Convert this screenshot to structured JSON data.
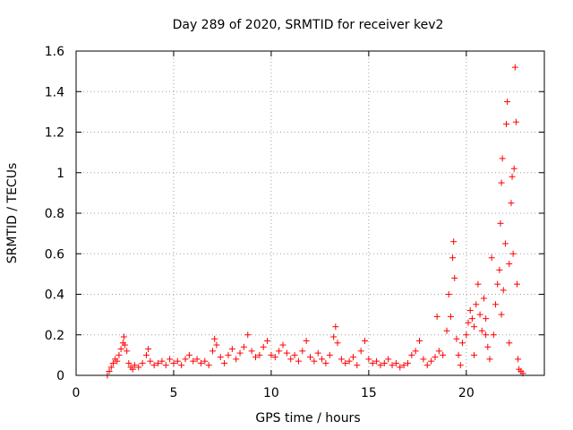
{
  "chart_data": {
    "type": "scatter",
    "title": "Day 289 of 2020, SRMTID for receiver kev2",
    "xlabel": "GPS time / hours",
    "ylabel": "SRMTID / TECUs",
    "xlim": [
      0,
      24
    ],
    "ylim": [
      0,
      1.6
    ],
    "xticks": [
      0,
      5,
      10,
      15,
      20
    ],
    "xtick_labels": [
      "0",
      "5",
      "10",
      "15",
      "20"
    ],
    "yticks": [
      0,
      0.2,
      0.4,
      0.6,
      0.8,
      1.0,
      1.2,
      1.4,
      1.6
    ],
    "ytick_labels": [
      "0",
      "0.2",
      "0.4",
      "0.6",
      "0.8",
      "1",
      "1.2",
      "1.4",
      "1.6"
    ],
    "grid": true,
    "marker": "+",
    "color": "#ff0000",
    "series": [
      {
        "name": "SRMTID",
        "points": [
          [
            1.6,
            0.0
          ],
          [
            1.7,
            0.02
          ],
          [
            1.8,
            0.04
          ],
          [
            1.9,
            0.06
          ],
          [
            2.0,
            0.08
          ],
          [
            2.1,
            0.07
          ],
          [
            2.2,
            0.1
          ],
          [
            2.3,
            0.13
          ],
          [
            2.4,
            0.16
          ],
          [
            2.45,
            0.19
          ],
          [
            2.5,
            0.15
          ],
          [
            2.6,
            0.12
          ],
          [
            2.7,
            0.06
          ],
          [
            2.8,
            0.04
          ],
          [
            2.9,
            0.03
          ],
          [
            3.0,
            0.05
          ],
          [
            3.2,
            0.04
          ],
          [
            3.4,
            0.06
          ],
          [
            3.6,
            0.1
          ],
          [
            3.7,
            0.13
          ],
          [
            3.8,
            0.07
          ],
          [
            4.0,
            0.05
          ],
          [
            4.2,
            0.06
          ],
          [
            4.4,
            0.07
          ],
          [
            4.6,
            0.05
          ],
          [
            4.8,
            0.08
          ],
          [
            5.0,
            0.06
          ],
          [
            5.2,
            0.07
          ],
          [
            5.4,
            0.05
          ],
          [
            5.6,
            0.08
          ],
          [
            5.8,
            0.1
          ],
          [
            6.0,
            0.07
          ],
          [
            6.2,
            0.08
          ],
          [
            6.4,
            0.06
          ],
          [
            6.6,
            0.07
          ],
          [
            6.8,
            0.05
          ],
          [
            7.0,
            0.12
          ],
          [
            7.1,
            0.18
          ],
          [
            7.2,
            0.15
          ],
          [
            7.4,
            0.09
          ],
          [
            7.6,
            0.06
          ],
          [
            7.8,
            0.1
          ],
          [
            8.0,
            0.13
          ],
          [
            8.2,
            0.08
          ],
          [
            8.4,
            0.11
          ],
          [
            8.6,
            0.14
          ],
          [
            8.8,
            0.2
          ],
          [
            9.0,
            0.12
          ],
          [
            9.2,
            0.09
          ],
          [
            9.4,
            0.1
          ],
          [
            9.6,
            0.14
          ],
          [
            9.8,
            0.17
          ],
          [
            10.0,
            0.1
          ],
          [
            10.2,
            0.09
          ],
          [
            10.4,
            0.12
          ],
          [
            10.6,
            0.15
          ],
          [
            10.8,
            0.11
          ],
          [
            11.0,
            0.08
          ],
          [
            11.2,
            0.1
          ],
          [
            11.4,
            0.07
          ],
          [
            11.6,
            0.12
          ],
          [
            11.8,
            0.17
          ],
          [
            12.0,
            0.09
          ],
          [
            12.2,
            0.07
          ],
          [
            12.4,
            0.11
          ],
          [
            12.6,
            0.08
          ],
          [
            12.8,
            0.06
          ],
          [
            13.0,
            0.1
          ],
          [
            13.2,
            0.19
          ],
          [
            13.3,
            0.24
          ],
          [
            13.4,
            0.16
          ],
          [
            13.6,
            0.08
          ],
          [
            13.8,
            0.06
          ],
          [
            14.0,
            0.07
          ],
          [
            14.2,
            0.09
          ],
          [
            14.4,
            0.05
          ],
          [
            14.6,
            0.12
          ],
          [
            14.8,
            0.17
          ],
          [
            15.0,
            0.08
          ],
          [
            15.2,
            0.06
          ],
          [
            15.4,
            0.07
          ],
          [
            15.6,
            0.05
          ],
          [
            15.8,
            0.06
          ],
          [
            16.0,
            0.08
          ],
          [
            16.2,
            0.05
          ],
          [
            16.4,
            0.06
          ],
          [
            16.6,
            0.04
          ],
          [
            16.8,
            0.05
          ],
          [
            17.0,
            0.06
          ],
          [
            17.2,
            0.1
          ],
          [
            17.4,
            0.12
          ],
          [
            17.6,
            0.17
          ],
          [
            17.8,
            0.08
          ],
          [
            18.0,
            0.05
          ],
          [
            18.2,
            0.07
          ],
          [
            18.4,
            0.09
          ],
          [
            18.5,
            0.29
          ],
          [
            18.6,
            0.12
          ],
          [
            18.8,
            0.1
          ],
          [
            19.0,
            0.22
          ],
          [
            19.1,
            0.4
          ],
          [
            19.2,
            0.29
          ],
          [
            19.3,
            0.58
          ],
          [
            19.35,
            0.66
          ],
          [
            19.4,
            0.48
          ],
          [
            19.5,
            0.18
          ],
          [
            19.6,
            0.1
          ],
          [
            19.8,
            0.16
          ],
          [
            20.0,
            0.2
          ],
          [
            20.1,
            0.26
          ],
          [
            20.2,
            0.32
          ],
          [
            20.3,
            0.28
          ],
          [
            20.4,
            0.24
          ],
          [
            20.5,
            0.35
          ],
          [
            20.6,
            0.45
          ],
          [
            20.7,
            0.3
          ],
          [
            20.8,
            0.22
          ],
          [
            20.9,
            0.38
          ],
          [
            21.0,
            0.28
          ],
          [
            21.1,
            0.14
          ],
          [
            21.2,
            0.08
          ],
          [
            21.3,
            0.58
          ],
          [
            21.4,
            0.2
          ],
          [
            21.5,
            0.35
          ],
          [
            21.6,
            0.45
          ],
          [
            21.7,
            0.52
          ],
          [
            21.75,
            0.75
          ],
          [
            21.8,
            0.95
          ],
          [
            21.85,
            1.07
          ],
          [
            21.9,
            0.42
          ],
          [
            22.0,
            0.65
          ],
          [
            22.05,
            1.24
          ],
          [
            22.1,
            1.35
          ],
          [
            22.2,
            0.55
          ],
          [
            22.3,
            0.85
          ],
          [
            22.35,
            0.98
          ],
          [
            22.4,
            0.6
          ],
          [
            22.45,
            1.02
          ],
          [
            22.5,
            1.52
          ],
          [
            22.55,
            1.25
          ],
          [
            22.6,
            0.45
          ],
          [
            22.65,
            0.08
          ],
          [
            22.7,
            0.03
          ],
          [
            22.8,
            0.02
          ],
          [
            22.9,
            0.01
          ],
          [
            21.0,
            0.2
          ],
          [
            20.4,
            0.1
          ],
          [
            19.7,
            0.05
          ],
          [
            21.8,
            0.3
          ],
          [
            22.2,
            0.16
          ]
        ]
      }
    ]
  }
}
